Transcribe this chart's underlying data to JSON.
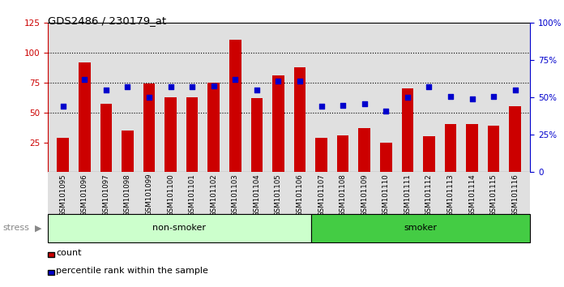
{
  "title": "GDS2486 / 230179_at",
  "samples": [
    "GSM101095",
    "GSM101096",
    "GSM101097",
    "GSM101098",
    "GSM101099",
    "GSM101100",
    "GSM101101",
    "GSM101102",
    "GSM101103",
    "GSM101104",
    "GSM101105",
    "GSM101106",
    "GSM101107",
    "GSM101108",
    "GSM101109",
    "GSM101110",
    "GSM101111",
    "GSM101112",
    "GSM101113",
    "GSM101114",
    "GSM101115",
    "GSM101116"
  ],
  "counts": [
    29,
    92,
    57,
    35,
    74,
    63,
    63,
    75,
    111,
    62,
    81,
    88,
    29,
    31,
    37,
    25,
    70,
    30,
    40,
    40,
    39,
    55
  ],
  "percentile_ranks": [
    44,
    62,
    55,
    57,
    50,
    57,
    57,
    58,
    62,
    55,
    61,
    61,
    44,
    45,
    46,
    41,
    50,
    57,
    51,
    49,
    51,
    55
  ],
  "non_smoker_count": 12,
  "smoker_count": 10,
  "bar_color": "#cc0000",
  "dot_color": "#0000cc",
  "non_smoker_color": "#ccffcc",
  "smoker_color": "#44cc44",
  "stress_label": "stress",
  "non_smoker_label": "non-smoker",
  "smoker_label": "smoker",
  "ylim_left": [
    0,
    125
  ],
  "ylim_right": [
    0,
    100
  ],
  "yticks_left": [
    25,
    50,
    75,
    100,
    125
  ],
  "yticks_right": [
    0,
    25,
    50,
    75,
    100
  ],
  "background_color": "#ffffff",
  "plot_bg_color": "#e0e0e0",
  "legend_count_label": "count",
  "legend_pct_label": "percentile rank within the sample"
}
